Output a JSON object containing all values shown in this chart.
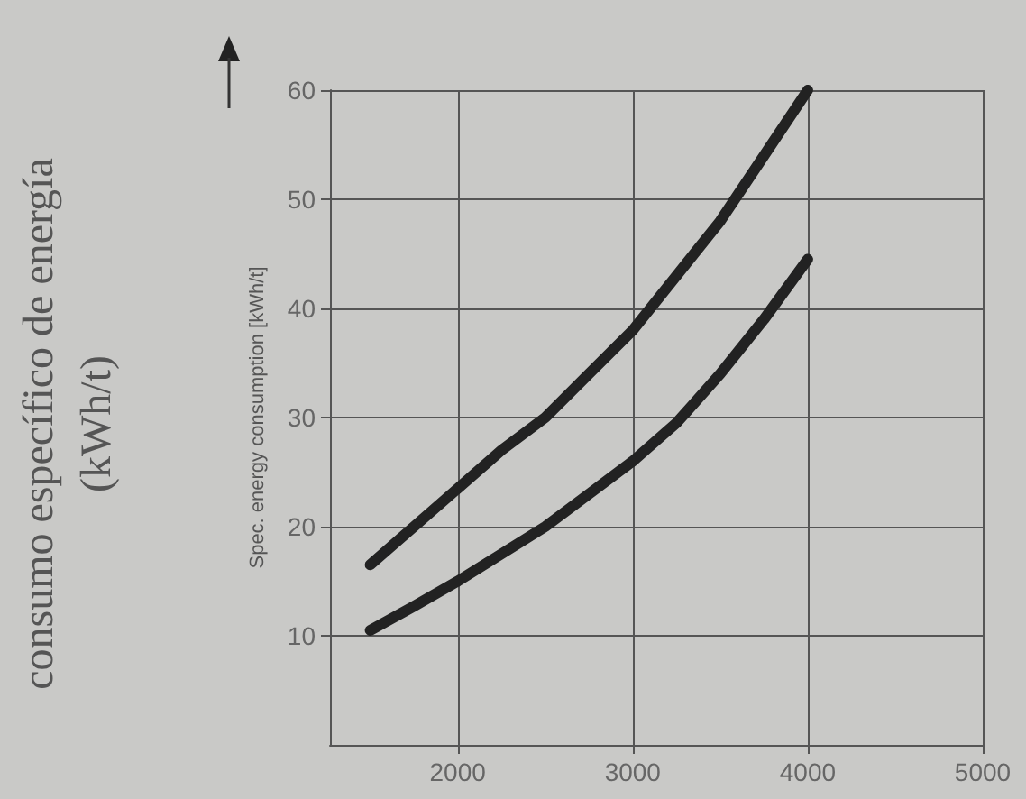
{
  "chart_data": {
    "type": "line",
    "ylabel": "Spec. energy consumption [kWh/t]",
    "annotations": [
      "consumo específico de energía",
      "(kWh/t)"
    ],
    "xlim": [
      1270,
      5000
    ],
    "xticks": [
      2000,
      3000,
      4000,
      5000
    ],
    "ylim": [
      0,
      60
    ],
    "yticks": [
      10,
      20,
      30,
      40,
      50,
      60
    ],
    "grid": true,
    "marker": "none",
    "line_style": "solid",
    "series": [
      {
        "color": "#222222",
        "x": [
          1500,
          1750,
          2000,
          2250,
          2500,
          2750,
          3000,
          3250,
          3500,
          3750,
          4000
        ],
        "values": [
          16.5,
          20,
          23.5,
          27,
          30,
          34,
          38,
          43,
          48,
          54,
          60
        ]
      },
      {
        "color": "#222222",
        "x": [
          1500,
          1750,
          2000,
          2250,
          2500,
          2750,
          3000,
          3250,
          3500,
          3750,
          4000
        ],
        "values": [
          10.5,
          12.7,
          15,
          17.5,
          20,
          23,
          26,
          29.5,
          34,
          39,
          44.5
        ]
      }
    ]
  }
}
